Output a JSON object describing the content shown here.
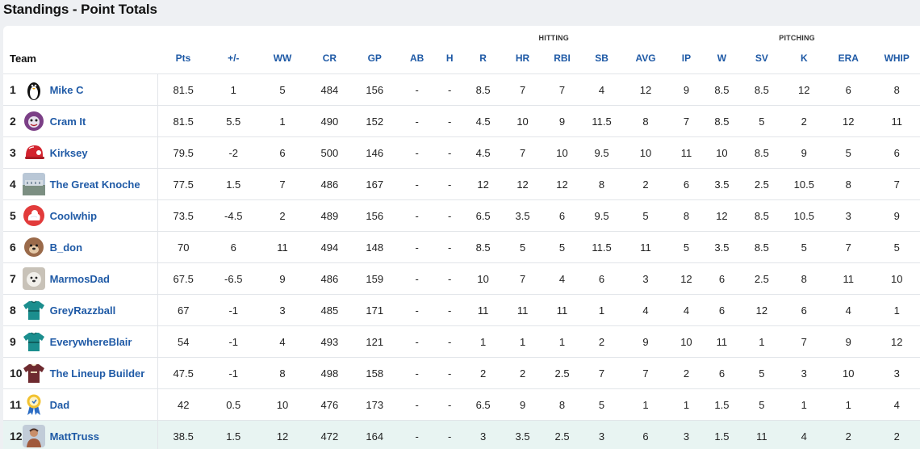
{
  "page": {
    "title": "Standings - Point Totals"
  },
  "groups": {
    "hitting": "HITTING",
    "pitching": "PITCHING"
  },
  "columns": [
    "Team",
    "Pts",
    "+/-",
    "WW",
    "CR",
    "GP",
    "AB",
    "H",
    "R",
    "HR",
    "RBI",
    "SB",
    "AVG",
    "IP",
    "W",
    "SV",
    "K",
    "ERA",
    "WHIP"
  ],
  "colors": {
    "link": "#1f5aa6",
    "positive": "#2e8b57",
    "negative": "#d0324a",
    "highlight": "#e8f4f2"
  },
  "rows": [
    {
      "rank": "1",
      "team": "Mike C",
      "avatar": "penguin-icon",
      "pts": "81.5",
      "pm": "1",
      "ww": "5",
      "cr": "484",
      "gp": "156",
      "ab": "-",
      "h": "-",
      "r": "8.5",
      "hr": "7",
      "rbi": "7",
      "sb": "4",
      "avg": "12",
      "ip": "9",
      "w": "8.5",
      "sv": "8.5",
      "k": "12",
      "era": "6",
      "whip": "8"
    },
    {
      "rank": "2",
      "team": "Cram It",
      "avatar": "baseball-face-icon",
      "pts": "81.5",
      "pm": "5.5",
      "ww": "1",
      "cr": "490",
      "gp": "152",
      "ab": "-",
      "h": "-",
      "r": "4.5",
      "hr": "10",
      "rbi": "9",
      "sb": "11.5",
      "avg": "8",
      "ip": "7",
      "w": "8.5",
      "sv": "5",
      "k": "2",
      "era": "12",
      "whip": "11"
    },
    {
      "rank": "3",
      "team": "Kirksey",
      "avatar": "batting-helmet-icon",
      "pts": "79.5",
      "pm": "-2",
      "ww": "6",
      "cr": "500",
      "gp": "146",
      "ab": "-",
      "h": "-",
      "r": "4.5",
      "hr": "7",
      "rbi": "10",
      "sb": "9.5",
      "avg": "10",
      "ip": "11",
      "w": "10",
      "sv": "8.5",
      "k": "9",
      "era": "5",
      "whip": "6"
    },
    {
      "rank": "4",
      "team": "The Great Knoche",
      "avatar": "stadium-photo-icon",
      "pts": "77.5",
      "pm": "1.5",
      "ww": "7",
      "cr": "486",
      "gp": "167",
      "ab": "-",
      "h": "-",
      "r": "12",
      "hr": "12",
      "rbi": "12",
      "sb": "8",
      "avg": "2",
      "ip": "6",
      "w": "3.5",
      "sv": "2.5",
      "k": "10.5",
      "era": "8",
      "whip": "7"
    },
    {
      "rank": "5",
      "team": "Coolwhip",
      "avatar": "whipped-cream-icon",
      "pts": "73.5",
      "pm": "-4.5",
      "ww": "2",
      "cr": "489",
      "gp": "156",
      "ab": "-",
      "h": "-",
      "r": "6.5",
      "hr": "3.5",
      "rbi": "6",
      "sb": "9.5",
      "avg": "5",
      "ip": "8",
      "w": "12",
      "sv": "8.5",
      "k": "10.5",
      "era": "3",
      "whip": "9"
    },
    {
      "rank": "6",
      "team": "B_don",
      "avatar": "dog-face-icon",
      "pts": "70",
      "pm": "6",
      "ww": "11",
      "cr": "494",
      "gp": "148",
      "ab": "-",
      "h": "-",
      "r": "8.5",
      "hr": "5",
      "rbi": "5",
      "sb": "11.5",
      "avg": "11",
      "ip": "5",
      "w": "3.5",
      "sv": "8.5",
      "k": "5",
      "era": "7",
      "whip": "5"
    },
    {
      "rank": "7",
      "team": "MarmosDad",
      "avatar": "white-dog-icon",
      "pts": "67.5",
      "pm": "-6.5",
      "ww": "9",
      "cr": "486",
      "gp": "159",
      "ab": "-",
      "h": "-",
      "r": "10",
      "hr": "7",
      "rbi": "4",
      "sb": "6",
      "avg": "3",
      "ip": "12",
      "w": "6",
      "sv": "2.5",
      "k": "8",
      "era": "11",
      "whip": "10"
    },
    {
      "rank": "8",
      "team": "GreyRazzball",
      "avatar": "teal-jersey-icon",
      "pts": "67",
      "pm": "-1",
      "ww": "3",
      "cr": "485",
      "gp": "171",
      "ab": "-",
      "h": "-",
      "r": "11",
      "hr": "11",
      "rbi": "11",
      "sb": "1",
      "avg": "4",
      "ip": "4",
      "w": "6",
      "sv": "12",
      "k": "6",
      "era": "4",
      "whip": "1"
    },
    {
      "rank": "9",
      "team": "EverywhereBlair",
      "avatar": "teal-jersey-icon",
      "pts": "54",
      "pm": "-1",
      "ww": "4",
      "cr": "493",
      "gp": "121",
      "ab": "-",
      "h": "-",
      "r": "1",
      "hr": "1",
      "rbi": "1",
      "sb": "2",
      "avg": "9",
      "ip": "10",
      "w": "11",
      "sv": "1",
      "k": "7",
      "era": "9",
      "whip": "12"
    },
    {
      "rank": "10",
      "team": "The Lineup Builder",
      "avatar": "maroon-jersey-icon",
      "pts": "47.5",
      "pm": "-1",
      "ww": "8",
      "cr": "498",
      "gp": "158",
      "ab": "-",
      "h": "-",
      "r": "2",
      "hr": "2",
      "rbi": "2.5",
      "sb": "7",
      "avg": "7",
      "ip": "2",
      "w": "6",
      "sv": "5",
      "k": "3",
      "era": "10",
      "whip": "3"
    },
    {
      "rank": "11",
      "team": "Dad",
      "avatar": "award-ribbon-icon",
      "pts": "42",
      "pm": "0.5",
      "ww": "10",
      "cr": "476",
      "gp": "173",
      "ab": "-",
      "h": "-",
      "r": "6.5",
      "hr": "9",
      "rbi": "8",
      "sb": "5",
      "avg": "1",
      "ip": "1",
      "w": "1.5",
      "sv": "5",
      "k": "1",
      "era": "1",
      "whip": "4"
    },
    {
      "rank": "12",
      "team": "MattTruss",
      "avatar": "person-photo-icon",
      "pts": "38.5",
      "pm": "1.5",
      "ww": "12",
      "cr": "472",
      "gp": "164",
      "ab": "-",
      "h": "-",
      "r": "3",
      "hr": "3.5",
      "rbi": "2.5",
      "sb": "3",
      "avg": "6",
      "ip": "3",
      "w": "1.5",
      "sv": "11",
      "k": "4",
      "era": "2",
      "whip": "2"
    }
  ]
}
